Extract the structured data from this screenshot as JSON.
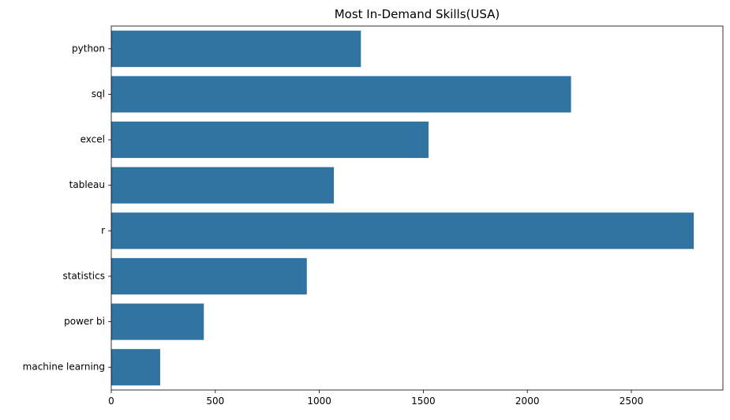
{
  "chart_data": {
    "type": "bar",
    "orientation": "horizontal",
    "title": "Most In-Demand Skills(USA)",
    "xlabel": "",
    "ylabel": "",
    "categories": [
      "python",
      "sql",
      "excel",
      "tableau",
      "r",
      "statistics",
      "power bi",
      "machine learning"
    ],
    "values": [
      1200,
      2210,
      1525,
      1070,
      2800,
      940,
      445,
      235
    ],
    "xlim": [
      0,
      2940
    ],
    "xticks": [
      0,
      500,
      1000,
      1500,
      2000,
      2500
    ],
    "grid": false,
    "legend": "none",
    "bar_color": "#3274a1"
  }
}
